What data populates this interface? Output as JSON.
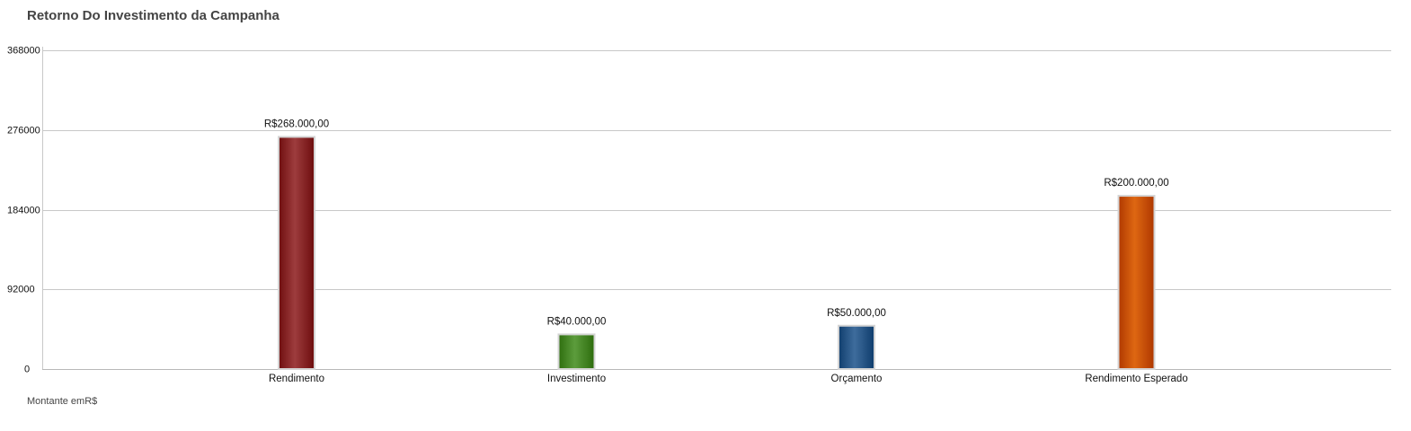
{
  "chart_data": {
    "type": "bar",
    "title": "Retorno Do Investimento da Campanha",
    "footnote": "Montante emR$",
    "categories": [
      "Rendimento",
      "Investimento",
      "Orçamento",
      "Rendimento Esperado"
    ],
    "values": [
      268000,
      40000,
      50000,
      200000
    ],
    "data_labels": [
      "R$268.000,00",
      "R$40.000,00",
      "R$50.000,00",
      "R$200.000,00"
    ],
    "colors": [
      "#8b2a2b",
      "#4a8a2a",
      "#2c5a8a",
      "#cc5500"
    ],
    "ylim": [
      0,
      368000
    ],
    "yticks": [
      0,
      92000,
      184000,
      276000,
      368000
    ],
    "grid": true,
    "xlabel": "",
    "ylabel": ""
  }
}
